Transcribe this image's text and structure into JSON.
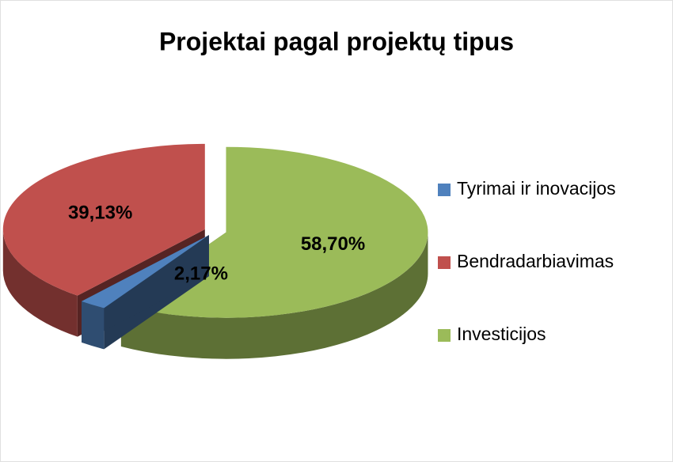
{
  "chart_data": {
    "type": "pie",
    "title": "Projektai pagal projektų tipus",
    "categories": [
      "Tyrimai ir inovacijos",
      "Bendradarbiavimas",
      "Investicijos"
    ],
    "values": [
      2.17,
      39.13,
      58.7
    ],
    "value_labels": [
      "2,17%",
      "39,13%",
      "58,70%"
    ],
    "colors": [
      "#4f81bd",
      "#c0504d",
      "#9bbb59"
    ],
    "legend": "right"
  }
}
